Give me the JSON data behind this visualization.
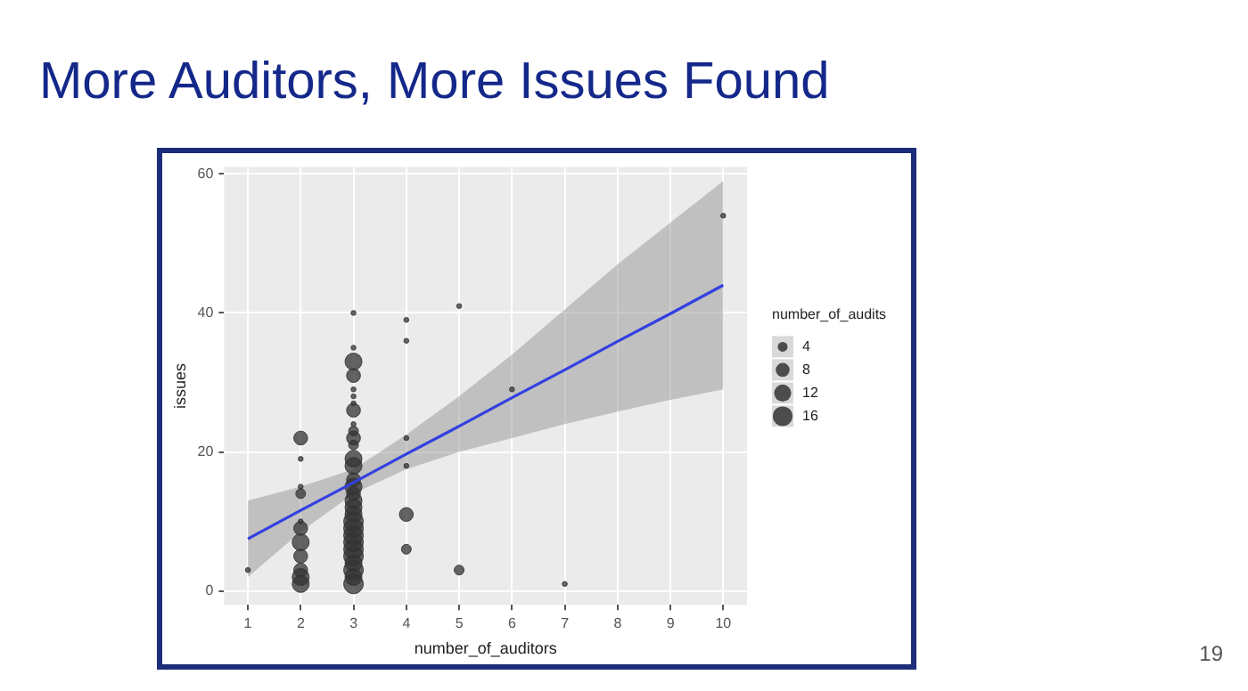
{
  "chart_data": {
    "type": "bubble",
    "title": "More Auditors, More Issues Found",
    "xlabel": "number_of_auditors",
    "ylabel": "issues",
    "legend_title": "number_of_audits",
    "size_legend": [
      4,
      8,
      12,
      16
    ],
    "grid": true,
    "xlim": [
      0.55,
      10.45
    ],
    "xticks": [
      1,
      2,
      3,
      4,
      5,
      6,
      7,
      8,
      9,
      10
    ],
    "ylim": [
      -2,
      61
    ],
    "yticks": [
      0,
      20,
      40,
      60
    ],
    "series": [
      {
        "color": "#333333",
        "x": [
          1,
          2,
          2,
          2,
          2,
          2,
          2,
          2,
          2,
          2,
          2,
          2,
          3,
          3,
          3,
          3,
          3,
          3,
          3,
          3,
          3,
          3,
          3,
          3,
          3,
          3,
          3,
          3,
          3,
          3,
          3,
          3,
          3,
          3,
          3,
          3,
          3,
          3,
          3,
          3,
          3,
          3,
          4,
          4,
          4,
          4,
          4,
          4,
          5,
          5,
          6,
          7,
          10
        ],
        "values": [
          3,
          22,
          19,
          15,
          14,
          10,
          9,
          7,
          5,
          3,
          2,
          1,
          40,
          35,
          33,
          31,
          29,
          28,
          27,
          26,
          24,
          23,
          22,
          21,
          19,
          18,
          16,
          15,
          14,
          13,
          12,
          11,
          10,
          9,
          8,
          7,
          6,
          5,
          4,
          3,
          2,
          1,
          39,
          36,
          22,
          18,
          11,
          6,
          41,
          3,
          29,
          1,
          54
        ],
        "sizes": [
          1,
          8,
          1,
          1,
          4,
          1,
          8,
          12,
          8,
          8,
          12,
          12,
          1,
          1,
          12,
          8,
          1,
          1,
          1,
          8,
          1,
          4,
          8,
          4,
          12,
          12,
          8,
          12,
          8,
          12,
          12,
          12,
          16,
          16,
          16,
          16,
          16,
          16,
          12,
          16,
          12,
          16,
          1,
          1,
          1,
          1,
          8,
          4,
          1,
          4,
          1,
          1,
          1
        ]
      },
      {
        "type": "line",
        "color": "#3340e0",
        "marker": "none",
        "x": [
          1,
          2,
          3,
          4,
          5,
          6,
          7,
          8,
          9,
          10
        ],
        "values": [
          7.5,
          11.6,
          15.6,
          19.7,
          23.7,
          27.8,
          31.8,
          35.9,
          39.9,
          44
        ],
        "lower": [
          2,
          8.5,
          14,
          17.5,
          20,
          22,
          24,
          25.8,
          27.5,
          29
        ],
        "upper": [
          13,
          15,
          17.5,
          22.5,
          28,
          34,
          40.5,
          47,
          53,
          59
        ]
      }
    ],
    "annotations": [
      "19"
    ]
  }
}
